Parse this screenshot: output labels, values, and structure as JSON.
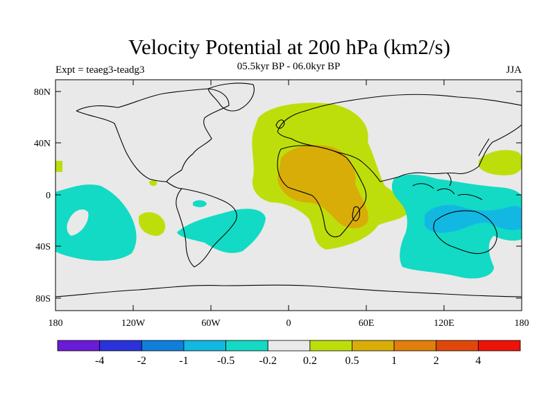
{
  "figure": {
    "title": "Velocity Potential at 200 hPa (km2/s)",
    "subtitle": "05.5kyr BP - 06.0kyr BP",
    "left_label": "Expt = teaeg3-teadg3",
    "right_label": "JJA"
  },
  "axes": {
    "lat_ticks": [
      "80N",
      "40N",
      "0",
      "40S",
      "80S"
    ],
    "lon_ticks": [
      "180",
      "120W",
      "60W",
      "0",
      "60E",
      "120E",
      "180"
    ]
  },
  "colorbar": {
    "colors": [
      "#6a1bd6",
      "#2a33d9",
      "#0f7fdc",
      "#12b8e2",
      "#13dac4",
      "#e9e9e9",
      "#bede0b",
      "#d9ad08",
      "#e07f0b",
      "#e0480b",
      "#ec1409"
    ],
    "labels": [
      "-4",
      "-2",
      "-1",
      "-0.5",
      "-0.2",
      "0.2",
      "0.5",
      "1",
      "2",
      "4"
    ]
  }
}
